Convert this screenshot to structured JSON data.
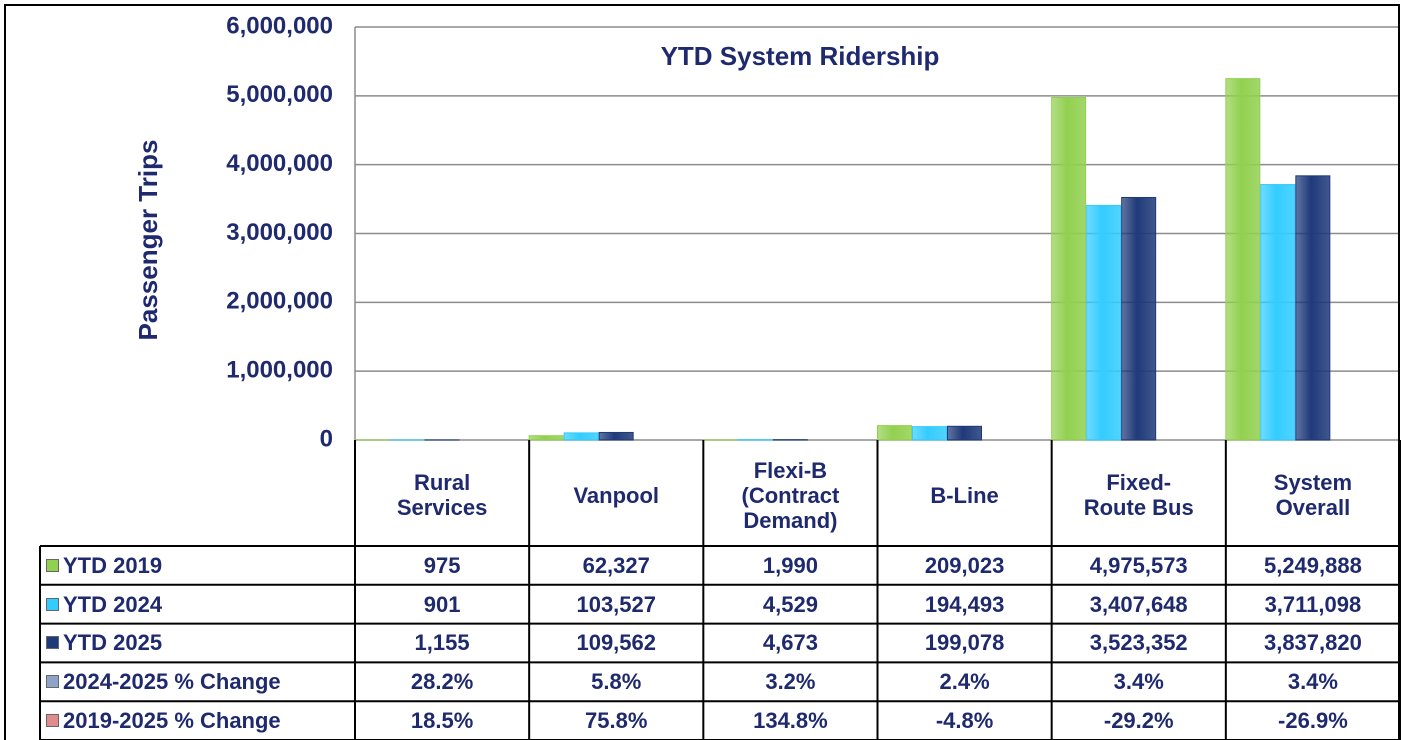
{
  "chart_data": {
    "type": "bar",
    "title": "YTD System Ridership",
    "y_label": "Passenger  Trips",
    "categories": [
      "Rural\nServices",
      "Vanpool",
      "Flexi-B\n(Contract\nDemand)",
      "B-Line",
      "Fixed-\nRoute Bus",
      "System\nOverall"
    ],
    "series": [
      {
        "name": "YTD 2019",
        "color": "#92d050",
        "values": [
          975,
          62327,
          1990,
          209023,
          4975573,
          5249888
        ],
        "value_labels": [
          "975",
          "62,327",
          "1,990",
          "209,023",
          "4,975,573",
          "5,249,888"
        ]
      },
      {
        "name": "YTD 2024",
        "color": "#33ccff",
        "values": [
          901,
          103527,
          4529,
          194493,
          3407648,
          3711098
        ],
        "value_labels": [
          "901",
          "103,527",
          "4,529",
          "194,493",
          "3,407,648",
          "3,711,098"
        ]
      },
      {
        "name": "YTD 2025",
        "color": "#1f3a7a",
        "values": [
          1155,
          109562,
          4673,
          199078,
          3523352,
          3837820
        ],
        "value_labels": [
          "1,155",
          "109,562",
          "4,673",
          "199,078",
          "3,523,352",
          "3,837,820"
        ]
      }
    ],
    "change_rows": [
      {
        "name": "2024-2025 % Change",
        "color": "#8fa3c9",
        "values": [
          28.2,
          5.8,
          3.2,
          2.4,
          3.4,
          3.4
        ],
        "value_labels": [
          "28.2%",
          "5.8%",
          "3.2%",
          "2.4%",
          "3.4%",
          "3.4%"
        ]
      },
      {
        "name": "2019-2025 % Change",
        "color": "#e08c8c",
        "values": [
          18.5,
          75.8,
          134.8,
          -4.8,
          -29.2,
          -26.9
        ],
        "value_labels": [
          "18.5%",
          "75.8%",
          "134.8%",
          "-4.8%",
          "-29.2%",
          "-26.9%"
        ]
      }
    ],
    "ylim": [
      0,
      6000000
    ],
    "yticks": [
      0,
      {
        "value": 1000000,
        "label": "1,000,000"
      },
      {
        "value": 2000000,
        "label": "2,000,000"
      },
      {
        "value": 3000000,
        "label": "3,000,000"
      },
      {
        "value": 4000000,
        "label": "4,000,000"
      },
      {
        "value": 5000000,
        "label": "5,000,000"
      },
      {
        "value": 6000000,
        "label": "6,000,000"
      }
    ],
    "grid": true
  }
}
